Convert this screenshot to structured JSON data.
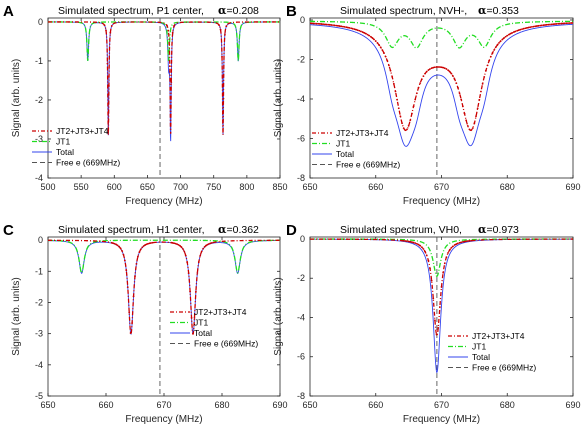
{
  "figure": {
    "xlabel": "Frequency (MHz)",
    "ylabel": "Signal (arb. units)",
    "legend_entries": [
      "JT2+JT3+JT4",
      "JT1",
      "Total",
      "Free e (669MHz)"
    ],
    "colors": {
      "jt234": "#cc0000",
      "jt1": "#22dd22",
      "total": "#3344ee",
      "free": "#555555"
    }
  },
  "chart_data": [
    {
      "panel": "A",
      "type": "line",
      "title": "Simulated spectrum, P1 center,",
      "alpha_symbol": "α",
      "alpha_value": "=0.208",
      "xlabel": "Frequency (MHz)",
      "ylabel": "Signal (arb. units)",
      "xlim": [
        500,
        850
      ],
      "ylim": [
        -4,
        0.1
      ],
      "xticks": [
        500,
        550,
        600,
        650,
        700,
        750,
        800,
        850
      ],
      "yticks": [
        0,
        -1,
        -2,
        -3,
        -4
      ],
      "legend": [
        "JT2+JT3+JT4",
        "JT1",
        "Total",
        "Free e (669MHz)"
      ],
      "legend_shows_total_as": "line",
      "free_electron_x": 669,
      "series": [
        {
          "name": "JT2+JT3+JT4",
          "baseline": 0,
          "peaks": [
            {
              "x0": 591,
              "depth": 2.9,
              "width": 1.0
            },
            {
              "x0": 685,
              "depth": 2.9,
              "width": 1.0
            },
            {
              "x0": 764,
              "depth": 2.9,
              "width": 1.0
            }
          ]
        },
        {
          "name": "JT1",
          "baseline": 0,
          "peaks": [
            {
              "x0": 560,
              "depth": 1.0,
              "width": 1.5
            },
            {
              "x0": 682,
              "depth": 1.0,
              "width": 1.5
            },
            {
              "x0": 787,
              "depth": 1.0,
              "width": 1.5
            }
          ]
        },
        {
          "name": "Total",
          "baseline": 0,
          "peaks": [
            {
              "x0": 560,
              "depth": 1.0,
              "width": 1.5
            },
            {
              "x0": 591,
              "depth": 2.9,
              "width": 1.0
            },
            {
              "x0": 682,
              "depth": 1.0,
              "width": 1.5
            },
            {
              "x0": 685,
              "depth": 2.9,
              "width": 1.0
            },
            {
              "x0": 764,
              "depth": 2.9,
              "width": 1.0
            },
            {
              "x0": 787,
              "depth": 1.0,
              "width": 1.5
            }
          ]
        }
      ]
    },
    {
      "panel": "B",
      "type": "line",
      "title": "Simulated spectrum, NVH-,",
      "alpha_symbol": "α",
      "alpha_value": "=0.353",
      "xlabel": "Frequency (MHz)",
      "ylabel": "Signal (arb. units)",
      "xlim": [
        650,
        690
      ],
      "ylim": [
        -8,
        0.1
      ],
      "xticks": [
        650,
        660,
        670,
        680,
        690
      ],
      "yticks": [
        0,
        -2,
        -4,
        -6,
        -8
      ],
      "legend": [
        "JT2+JT3+JT4",
        "JT1",
        "Total",
        "Free e (669MHz)"
      ],
      "legend_shows_total_as": "line",
      "free_electron_x": 669.3,
      "series": [
        {
          "name": "JT2+JT3+JT4",
          "baseline": 0,
          "peaks": [
            {
              "x0": 664.5,
              "depth": 5.0,
              "width": 2.0
            },
            {
              "x0": 674.5,
              "depth": 5.0,
              "width": 2.0
            },
            {
              "x0": 669.5,
              "depth": 1.0,
              "width": 4.0
            }
          ]
        },
        {
          "name": "JT1",
          "baseline": -0.05,
          "peaks": [
            {
              "x0": 662.5,
              "depth": 1.2,
              "width": 1.2
            },
            {
              "x0": 666.2,
              "depth": 1.2,
              "width": 1.2
            },
            {
              "x0": 672.7,
              "depth": 1.2,
              "width": 1.2
            },
            {
              "x0": 676.5,
              "depth": 1.2,
              "width": 1.2
            }
          ]
        },
        {
          "name": "Total",
          "baseline": -0.05,
          "peaks": [
            {
              "x0": 664.5,
              "depth": 5.0,
              "width": 2.0
            },
            {
              "x0": 674.5,
              "depth": 5.0,
              "width": 2.0
            },
            {
              "x0": 669.5,
              "depth": 1.0,
              "width": 4.0
            },
            {
              "x0": 662.5,
              "depth": 1.2,
              "width": 1.2
            },
            {
              "x0": 666.2,
              "depth": 1.2,
              "width": 1.2
            },
            {
              "x0": 672.7,
              "depth": 1.2,
              "width": 1.2
            },
            {
              "x0": 676.5,
              "depth": 1.2,
              "width": 1.2
            }
          ]
        }
      ]
    },
    {
      "panel": "C",
      "type": "line",
      "title": "Simulated spectrum, H1 center,",
      "alpha_symbol": "α",
      "alpha_value": "=0.362",
      "xlabel": "Frequency (MHz)",
      "ylabel": "Signal (arb. units)",
      "xlim": [
        650,
        690
      ],
      "ylim": [
        -5,
        0.1
      ],
      "xticks": [
        650,
        660,
        670,
        680,
        690
      ],
      "yticks": [
        0,
        -1,
        -2,
        -3,
        -4,
        -5
      ],
      "legend": [
        "JT2+JT3+JT4",
        "JT1",
        "Total",
        "Free e (669MHz)"
      ],
      "legend_shows_total_as": "line",
      "free_electron_x": 669.3,
      "series": [
        {
          "name": "JT2+JT3+JT4",
          "baseline": 0,
          "peaks": [
            {
              "x0": 664.3,
              "depth": 3.0,
              "width": 0.55
            },
            {
              "x0": 675.0,
              "depth": 3.0,
              "width": 0.55
            }
          ]
        },
        {
          "name": "JT1",
          "baseline": 0,
          "peaks": [
            {
              "x0": 655.8,
              "depth": 1.05,
              "width": 0.55
            },
            {
              "x0": 682.7,
              "depth": 1.05,
              "width": 0.55
            }
          ]
        },
        {
          "name": "Total",
          "baseline": 0,
          "peaks": [
            {
              "x0": 664.3,
              "depth": 3.0,
              "width": 0.55
            },
            {
              "x0": 675.0,
              "depth": 3.0,
              "width": 0.55
            },
            {
              "x0": 655.8,
              "depth": 1.05,
              "width": 0.55
            },
            {
              "x0": 682.7,
              "depth": 1.05,
              "width": 0.55
            }
          ]
        }
      ]
    },
    {
      "panel": "D",
      "type": "line",
      "title": "Simulated spectrum, VH0,",
      "alpha_symbol": "α",
      "alpha_value": "=0.973",
      "xlabel": "Frequency (MHz)",
      "ylabel": "Signal (arb. units)",
      "xlim": [
        650,
        690
      ],
      "ylim": [
        -8,
        0.1
      ],
      "xticks": [
        650,
        660,
        670,
        680,
        690
      ],
      "yticks": [
        0,
        -2,
        -4,
        -6,
        -8
      ],
      "legend": [
        "JT2+JT3+JT4",
        "JT1",
        "Total",
        "Free e (669MHz)"
      ],
      "legend_shows_total_as": "line",
      "free_electron_x": 669.3,
      "series": [
        {
          "name": "JT2+JT3+JT4",
          "baseline": 0,
          "peaks": [
            {
              "x0": 669.3,
              "depth": 4.9,
              "width": 0.7
            }
          ]
        },
        {
          "name": "JT1",
          "baseline": 0,
          "peaks": [
            {
              "x0": 669.3,
              "depth": 1.9,
              "width": 0.7
            }
          ]
        },
        {
          "name": "Total",
          "baseline": 0,
          "peaks": [
            {
              "x0": 669.3,
              "depth": 6.8,
              "width": 0.7
            }
          ]
        }
      ]
    }
  ]
}
